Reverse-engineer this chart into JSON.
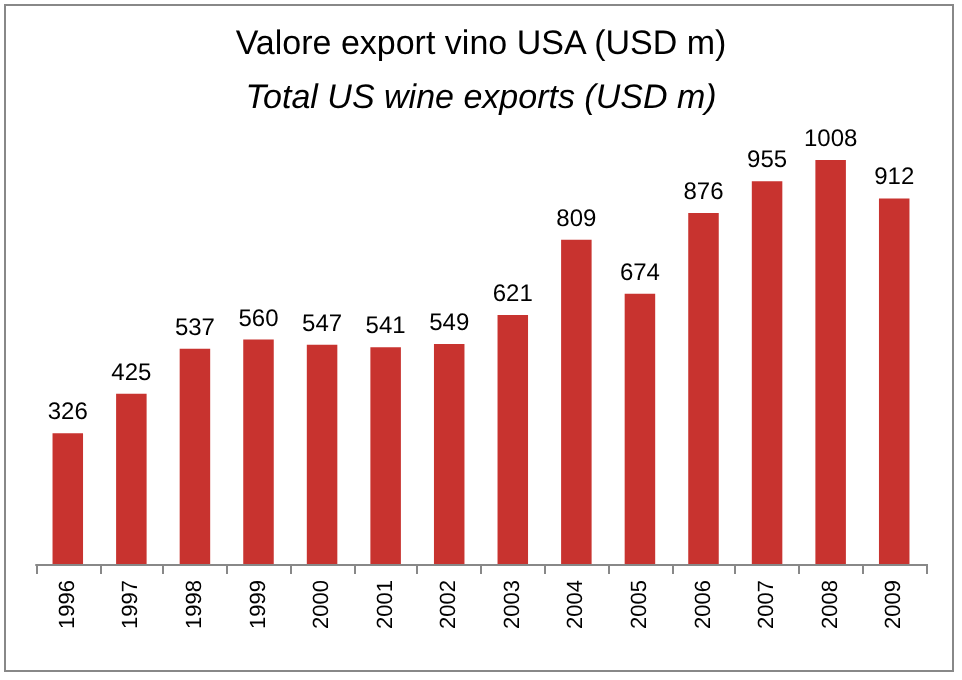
{
  "chart_data": {
    "type": "bar",
    "title": "Valore export vino USA (USD m)",
    "subtitle": "Total US wine exports (USD m)",
    "categories": [
      "1996",
      "1997",
      "1998",
      "1999",
      "2000",
      "2001",
      "2002",
      "2003",
      "2004",
      "2005",
      "2006",
      "2007",
      "2008",
      "2009"
    ],
    "values": [
      326,
      425,
      537,
      560,
      547,
      541,
      549,
      621,
      809,
      674,
      876,
      955,
      1008,
      912
    ],
    "color": "#c8332f",
    "data_labels": true
  }
}
